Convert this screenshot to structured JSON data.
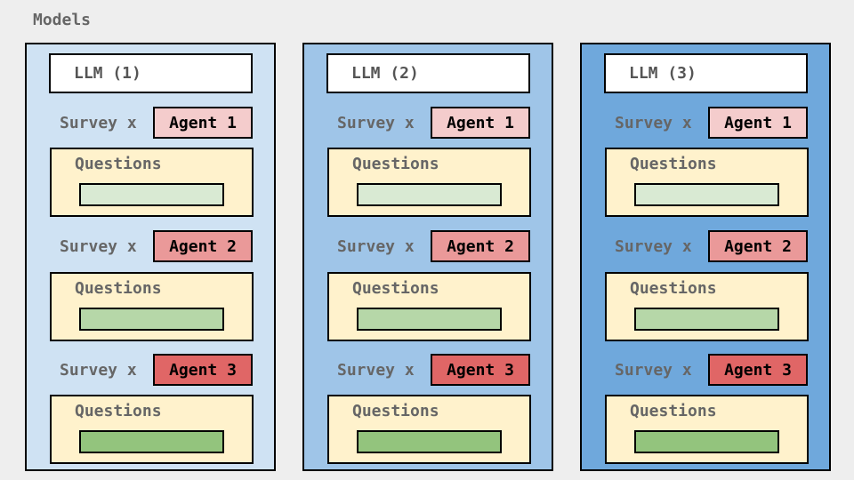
{
  "title": "Models",
  "colors": {
    "panel_backgrounds": [
      "#cfe2f3",
      "#9fc5e8",
      "#6fa8dc"
    ],
    "agent_backgrounds": [
      "#f4cccc",
      "#ea9999",
      "#e06666"
    ],
    "question_bar_backgrounds": [
      "#d9ead3",
      "#b6d7a8",
      "#93c47d"
    ],
    "questions_box": "#fff2cc"
  },
  "panels": [
    {
      "llm": "LLM (1)",
      "rows": [
        {
          "survey": "Survey x",
          "agent": "Agent 1",
          "questions": "Questions"
        },
        {
          "survey": "Survey x",
          "agent": "Agent 2",
          "questions": "Questions"
        },
        {
          "survey": "Survey x",
          "agent": "Agent 3",
          "questions": "Questions"
        }
      ]
    },
    {
      "llm": "LLM (2)",
      "rows": [
        {
          "survey": "Survey x",
          "agent": "Agent 1",
          "questions": "Questions"
        },
        {
          "survey": "Survey x",
          "agent": "Agent 2",
          "questions": "Questions"
        },
        {
          "survey": "Survey x",
          "agent": "Agent 3",
          "questions": "Questions"
        }
      ]
    },
    {
      "llm": "LLM (3)",
      "rows": [
        {
          "survey": "Survey x",
          "agent": "Agent 1",
          "questions": "Questions"
        },
        {
          "survey": "Survey x",
          "agent": "Agent 2",
          "questions": "Questions"
        },
        {
          "survey": "Survey x",
          "agent": "Agent 3",
          "questions": "Questions"
        }
      ]
    }
  ]
}
